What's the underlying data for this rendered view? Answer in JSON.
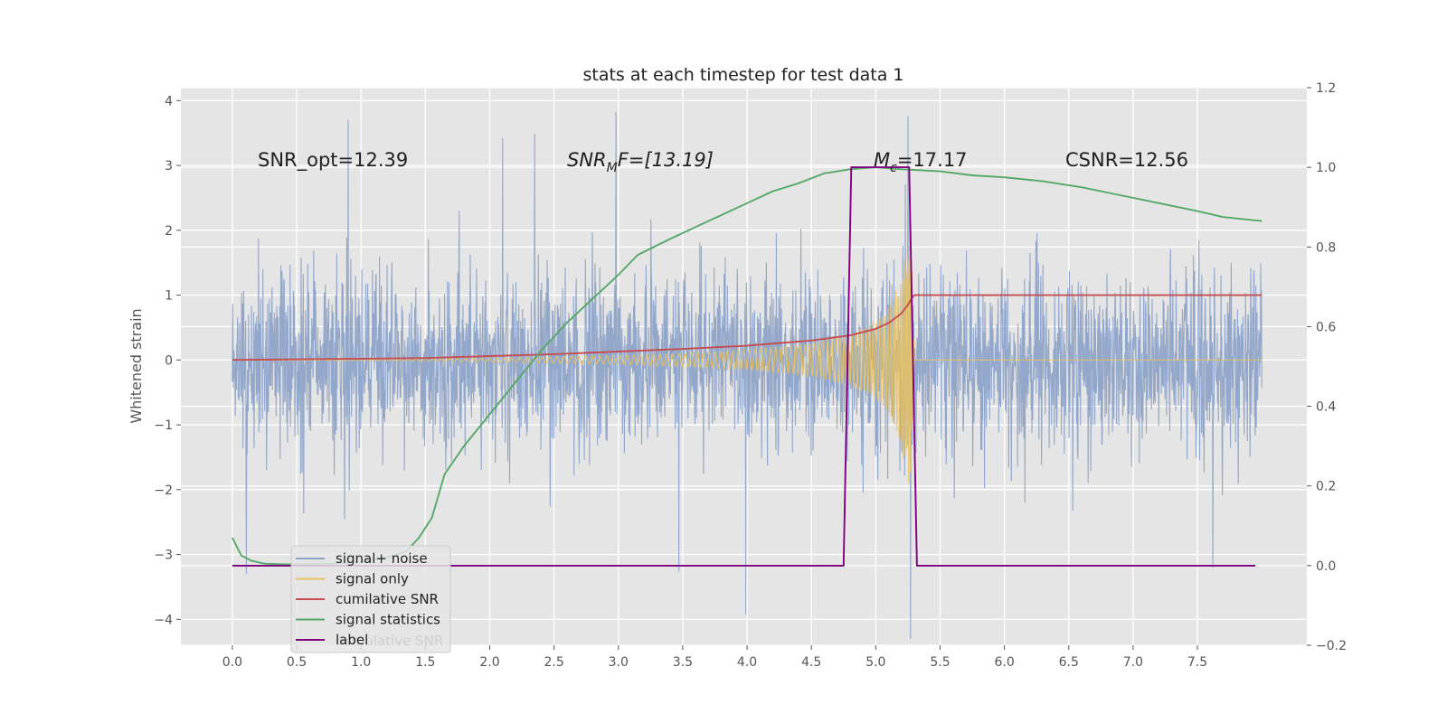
{
  "chart_data": {
    "type": "line",
    "title": "stats at each timestep for test data 1",
    "xlabel": "",
    "ylabel": "Whitened strain",
    "xlim": [
      -0.4,
      8.35
    ],
    "ylim_left": [
      -4.4,
      4.2
    ],
    "ylim_right": [
      -0.2,
      1.2
    ],
    "xticks": [
      0.0,
      0.5,
      1.0,
      1.5,
      2.0,
      2.5,
      3.0,
      3.5,
      4.0,
      4.5,
      5.0,
      5.5,
      6.0,
      6.5,
      7.0,
      7.5
    ],
    "yticks_left": [
      -4,
      -3,
      -2,
      -1,
      0,
      1,
      2,
      3,
      4
    ],
    "yticks_right": [
      -0.2,
      0.0,
      0.2,
      0.4,
      0.6,
      0.8,
      1.0,
      1.2
    ],
    "grid": true,
    "legend_position": "lower-left",
    "annotations": {
      "snr_opt": "SNR_opt=12.39",
      "snr_mf_base": "SNR",
      "snr_mf_sub": "M",
      "snr_mf_tail": "F=[13.19]",
      "mc_base": "M",
      "mc_sub": "c",
      "mc_tail": "=17.17",
      "csnr": "CSNR=12.56"
    },
    "legend_ghost_text": "cumulative SNR",
    "series": [
      {
        "name": "signal+ noise",
        "axis": "left",
        "color": "#8da3c8",
        "x_range": [
          0.0,
          8.0
        ],
        "amplitude_typical": 1.3,
        "y_extremes": [
          {
            "x": 0.9,
            "y": 3.7
          },
          {
            "x": 2.1,
            "y": 3.4
          },
          {
            "x": 2.35,
            "y": 3.5
          },
          {
            "x": 2.98,
            "y": 3.8
          },
          {
            "x": 5.25,
            "y": 3.75
          },
          {
            "x": 0.11,
            "y": -3.3
          },
          {
            "x": 3.47,
            "y": -3.3
          },
          {
            "x": 3.99,
            "y": -4.0
          },
          {
            "x": 5.27,
            "y": -3.4
          },
          {
            "x": 7.62,
            "y": -3.2
          }
        ]
      },
      {
        "name": "signal only",
        "axis": "left",
        "color": "#e8c261",
        "envelope": [
          {
            "x": 0.0,
            "y": 0.0
          },
          {
            "x": 1.0,
            "y": 0.01
          },
          {
            "x": 2.0,
            "y": 0.03
          },
          {
            "x": 2.5,
            "y": 0.05
          },
          {
            "x": 3.0,
            "y": 0.07
          },
          {
            "x": 3.5,
            "y": 0.1
          },
          {
            "x": 4.0,
            "y": 0.15
          },
          {
            "x": 4.5,
            "y": 0.25
          },
          {
            "x": 4.8,
            "y": 0.4
          },
          {
            "x": 5.0,
            "y": 0.6
          },
          {
            "x": 5.1,
            "y": 0.8
          },
          {
            "x": 5.2,
            "y": 1.3
          },
          {
            "x": 5.27,
            "y": 2.3
          },
          {
            "x": 5.3,
            "y": 0.0
          },
          {
            "x": 8.0,
            "y": 0.0
          }
        ]
      },
      {
        "name": "cumilative SNR",
        "axis": "left",
        "color": "#c44e52",
        "x": [
          0.0,
          0.5,
          1.0,
          1.5,
          2.0,
          2.5,
          3.0,
          3.5,
          4.0,
          4.5,
          4.8,
          5.0,
          5.1,
          5.2,
          5.25,
          5.28,
          5.3,
          6.0,
          7.0,
          8.0
        ],
        "y": [
          0.0,
          0.01,
          0.02,
          0.03,
          0.06,
          0.09,
          0.13,
          0.17,
          0.22,
          0.3,
          0.38,
          0.48,
          0.57,
          0.72,
          0.85,
          0.95,
          1.0,
          1.0,
          1.0,
          1.0
        ]
      },
      {
        "name": "signal statistics",
        "axis": "right",
        "color": "#55a868",
        "x": [
          0.0,
          0.07,
          0.15,
          0.25,
          0.4,
          0.6,
          0.8,
          1.0,
          1.2,
          1.35,
          1.45,
          1.55,
          1.65,
          1.8,
          2.0,
          2.2,
          2.4,
          2.6,
          2.8,
          3.0,
          3.15,
          3.4,
          3.6,
          3.8,
          4.0,
          4.2,
          4.4,
          4.6,
          4.8,
          5.0,
          5.2,
          5.5,
          5.75,
          6.0,
          6.3,
          6.6,
          6.9,
          7.2,
          7.5,
          7.7,
          8.0
        ],
        "y": [
          0.07,
          0.025,
          0.012,
          0.005,
          0.003,
          0.003,
          0.005,
          0.01,
          0.02,
          0.035,
          0.07,
          0.12,
          0.23,
          0.3,
          0.38,
          0.46,
          0.54,
          0.61,
          0.67,
          0.73,
          0.78,
          0.82,
          0.85,
          0.88,
          0.91,
          0.94,
          0.96,
          0.985,
          0.995,
          1.0,
          0.995,
          0.99,
          0.98,
          0.975,
          0.965,
          0.95,
          0.93,
          0.91,
          0.89,
          0.875,
          0.865
        ]
      },
      {
        "name": "label",
        "axis": "right",
        "color": "#800080",
        "x": [
          0.0,
          4.75,
          4.81,
          5.26,
          5.32,
          7.95
        ],
        "y": [
          0.0,
          0.0,
          1.0,
          1.0,
          0.0,
          0.0
        ]
      }
    ]
  }
}
